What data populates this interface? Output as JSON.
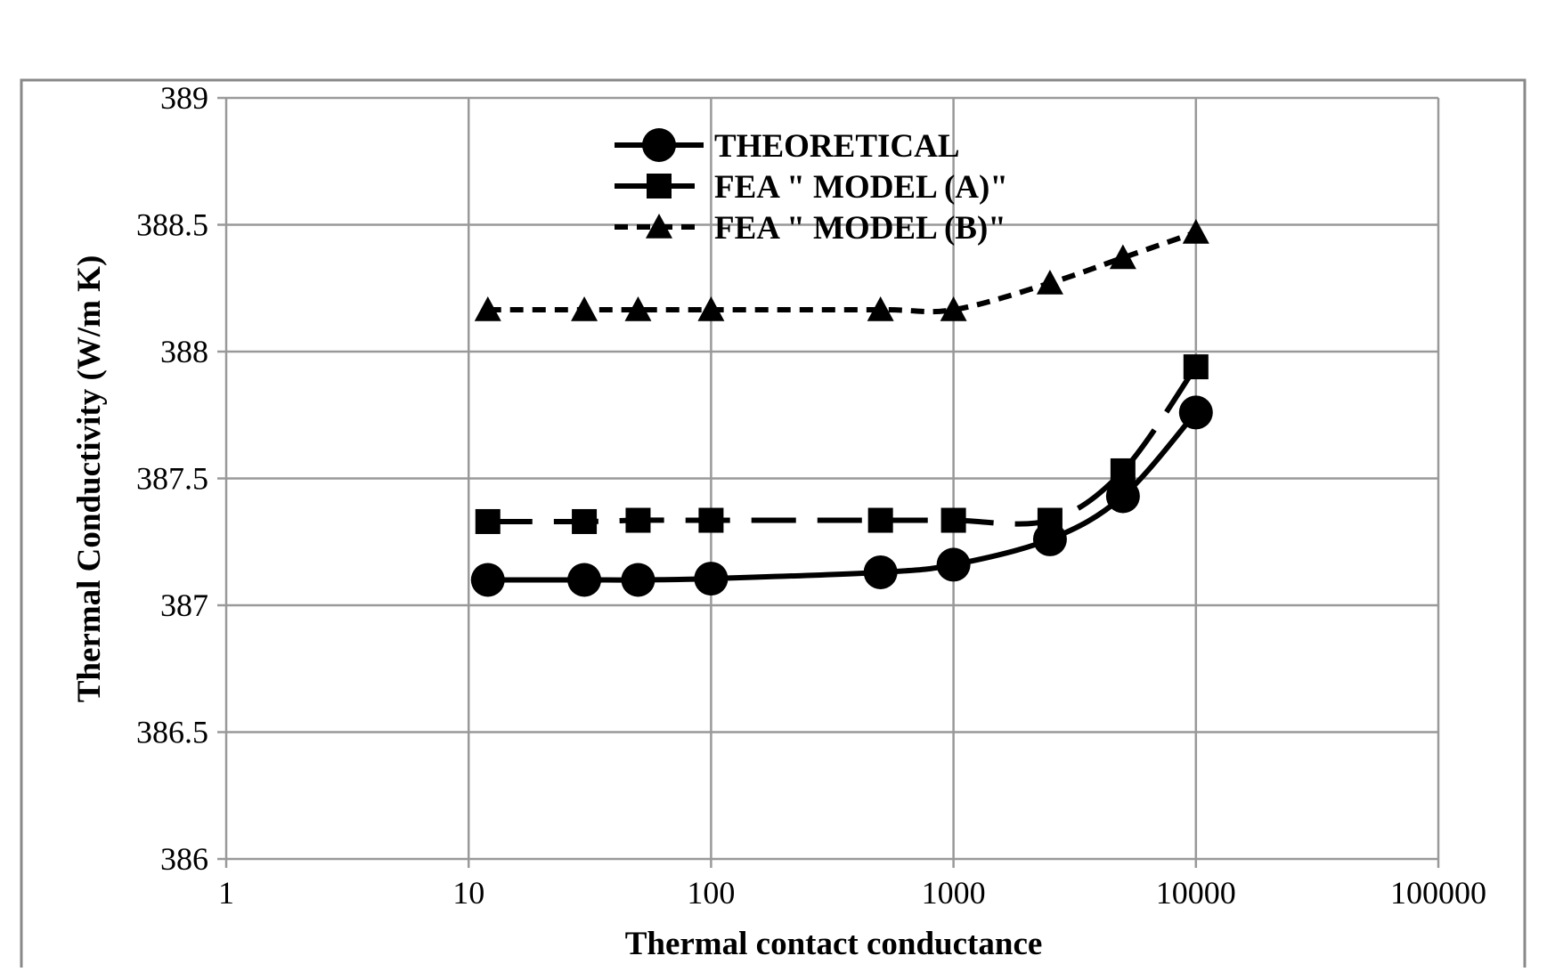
{
  "chart_data": {
    "type": "line",
    "title": "",
    "xlabel": "Thermal contact conductance",
    "ylabel": "Thermal Conductivity  (W/m K)",
    "xscale": "log",
    "xlim": [
      1,
      100000
    ],
    "ylim": [
      386,
      389
    ],
    "x_ticks": [
      "1",
      "10",
      "100",
      "1000",
      "10000",
      "100000"
    ],
    "y_ticks": [
      "386",
      "386.5",
      "387",
      "387.5",
      "388",
      "388.5",
      "389"
    ],
    "grid": true,
    "legend_position": "top-center",
    "x": [
      12,
      30,
      50,
      100,
      500,
      1000,
      2500,
      5000,
      10000
    ],
    "series": [
      {
        "name": "THEORETICAL",
        "marker": "circle",
        "line_style": "solid",
        "values": [
          387.1,
          387.1,
          387.1,
          387.105,
          387.13,
          387.16,
          387.26,
          387.43,
          387.76
        ]
      },
      {
        "name": "FEA \" MODEL (A)\"",
        "marker": "square",
        "line_style": "long-dash",
        "values": [
          387.33,
          387.33,
          387.335,
          387.335,
          387.335,
          387.335,
          387.335,
          387.53,
          387.94
        ]
      },
      {
        "name": "FEA \" MODEL (B)\"",
        "marker": "triangle",
        "line_style": "short-dash",
        "values": [
          388.165,
          388.165,
          388.165,
          388.165,
          388.165,
          388.165,
          388.27,
          388.37,
          388.47
        ]
      }
    ],
    "colors": {
      "series": "#000000",
      "grid": "#999999",
      "frame": "#888888"
    }
  }
}
